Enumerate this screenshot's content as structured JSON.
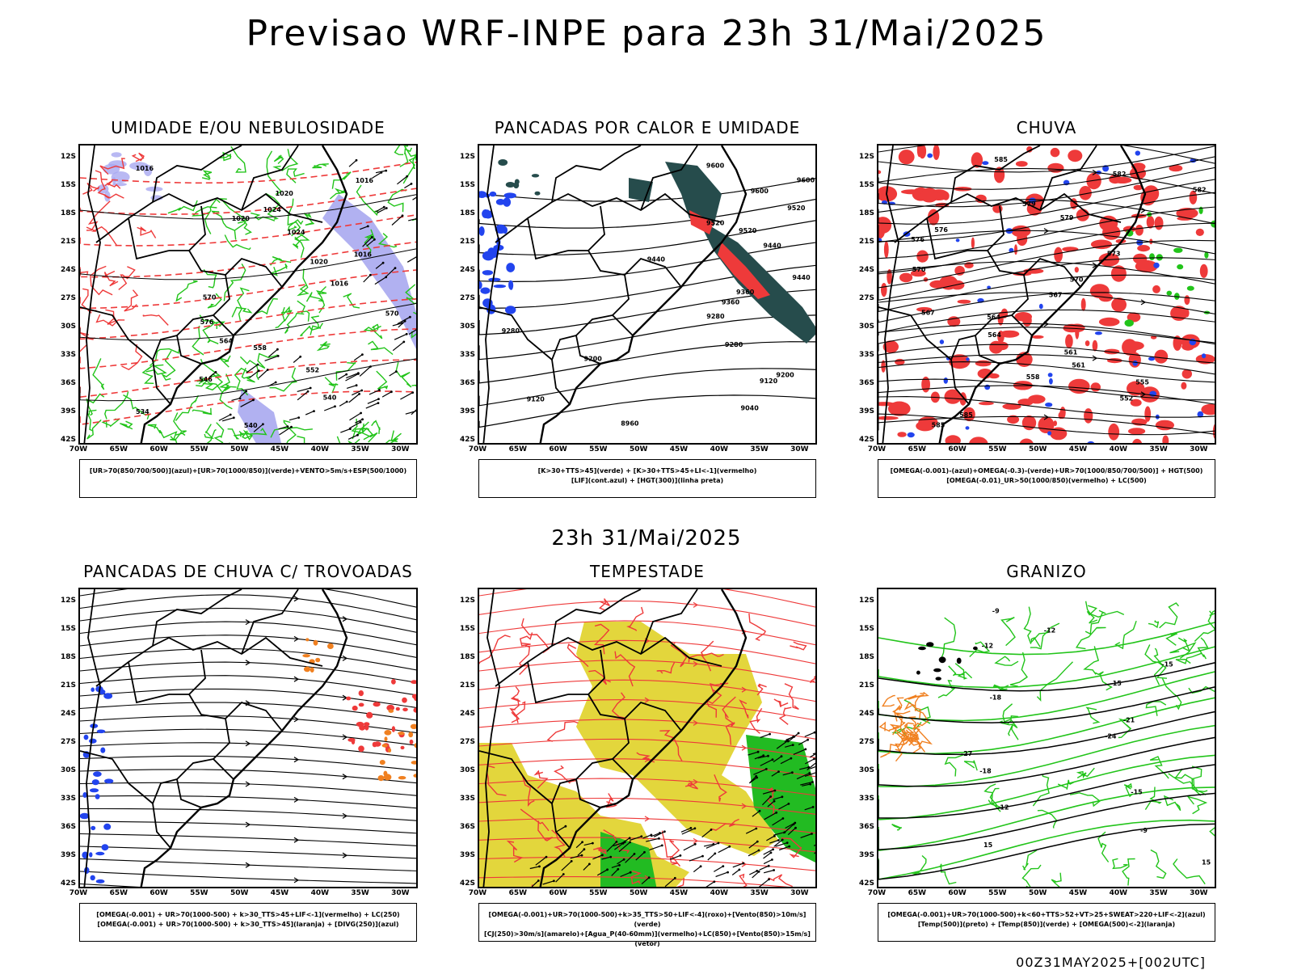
{
  "title": "Previsao WRF-INPE  para 23h 31/Mai/2025",
  "mid_date": "23h 31/Mai/2025",
  "footer": "00Z31MAY2025+[002UTC]",
  "lat_labels": [
    "12S",
    "15S",
    "18S",
    "21S",
    "24S",
    "27S",
    "30S",
    "33S",
    "36S",
    "39S",
    "42S"
  ],
  "lon_labels": [
    "70W",
    "65W",
    "60W",
    "55W",
    "50W",
    "45W",
    "40W",
    "35W",
    "30W"
  ],
  "colors": {
    "green": "#22c41a",
    "red": "#ee3a3a",
    "blue": "#2244ee",
    "lavender": "#a8a8f0",
    "dark_teal": "#264c4c",
    "yellow": "#e3d63c",
    "orange": "#f08020"
  },
  "panels": [
    {
      "title": "UMIDADE E/OU NEBULOSIDADE",
      "legend": [
        "[UR>70(850/700/500)](azul)+[UR>70(1000/850)](verde)+VENTO>5m/s+ESP(500/1000)"
      ],
      "labels": [
        "1016",
        "1016",
        "1020",
        "1024",
        "1020",
        "1024",
        "1016",
        "1020",
        "1016",
        "570",
        "570",
        "576",
        "564",
        "558",
        "552",
        "546",
        "540",
        "534",
        "540"
      ]
    },
    {
      "title": "PANCADAS POR CALOR E UMIDADE",
      "legend": [
        "[K>30+TTS>45](verde) + [K>30+TTS>45+LI<-1](vermelho)",
        "[LIF](cont.azul) + [HGT(300)](linha preta)"
      ],
      "labels": [
        "9600",
        "9600",
        "9600",
        "9520",
        "9520",
        "9520",
        "9440",
        "9440",
        "9440",
        "9360",
        "9360",
        "9280",
        "9280",
        "9280",
        "9200",
        "9200",
        "9120",
        "9120",
        "9040",
        "8960"
      ]
    },
    {
      "title": "CHUVA",
      "legend": [
        "[OMEGA(-0.001)-(azul)+OMEGA(-0.3)-(verde)+UR>70(1000/850/700/500)] + HGT(500)",
        "[OMEGA(-0.01)_UR>50(1000/850)(vermelho) + LC(500)"
      ],
      "labels": [
        "585",
        "582",
        "582",
        "579",
        "579",
        "576",
        "576",
        "573",
        "570",
        "570",
        "567",
        "567",
        "564",
        "564",
        "561",
        "561",
        "558",
        "555",
        "552",
        "585",
        "585"
      ]
    },
    {
      "title": "PANCADAS DE CHUVA C/ TROVOADAS",
      "legend": [
        "[OMEGA(-0.001) + UR>70(1000-500) + k>30_TTS>45+LIF<-1](vermelho) + LC(250)",
        "[OMEGA(-0.001) + UR>70(1000-500) + k>30_TTS>45](laranja) + [DIVG(250)](azul)"
      ],
      "labels": []
    },
    {
      "title": "TEMPESTADE",
      "legend": [
        "[OMEGA(-0.001)+UR>70(1000-500)+k>35_TTS>50+LIF<-4](roxo)+[Vento(850)>10m/s](verde)",
        "[CJ(250)>30m/s](amarelo)+[Agua_P(40-60mm)](vermelho)+LC(850)+[Vento(850)>15m/s](vetor)"
      ],
      "labels": []
    },
    {
      "title": "GRANIZO",
      "legend": [
        "[OMEGA(-0.001)+UR>70(1000-500)+k<60+TTS>52+VT>25+SWEAT>220+LIF<-2](azul)",
        "[Temp(500)](preto) + [Temp(850)](verde) + [OMEGA(500)<-2](laranja)"
      ],
      "labels": [
        "-9",
        "-12",
        "-12",
        "-15",
        "-15",
        "-18",
        "-21",
        "-24",
        "-27",
        "-18",
        "-15",
        "-12",
        "-9",
        "15",
        "15"
      ]
    }
  ]
}
